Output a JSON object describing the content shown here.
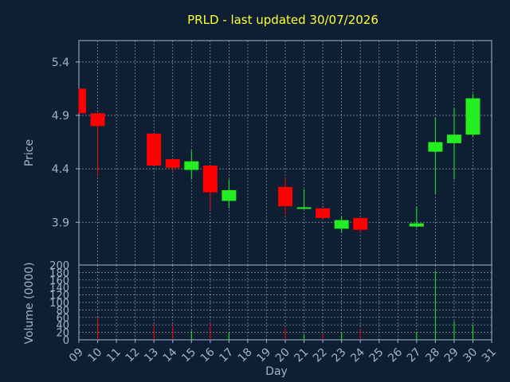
{
  "chart_data": {
    "type": "candlestick",
    "title": "PRLD - last updated 30/07/2026",
    "ylabel": "Price",
    "volume_label": "Volume (0000)",
    "xlabel": "Day",
    "x_ticks": [
      "09",
      "10",
      "11",
      "12",
      "13",
      "14",
      "15",
      "16",
      "17",
      "18",
      "19",
      "20",
      "21",
      "22",
      "23",
      "24",
      "25",
      "26",
      "27",
      "28",
      "29",
      "30",
      "31"
    ],
    "ylim": [
      3.5,
      5.6
    ],
    "y_ticks": [
      "3.9",
      "4.4",
      "4.9",
      "5.4"
    ],
    "vol_ylim": [
      0,
      200
    ],
    "vol_ticks": [
      "0",
      "20",
      "40",
      "60",
      "80",
      "100",
      "120",
      "140",
      "160",
      "180",
      "200"
    ],
    "candles": [
      {
        "day": "09",
        "open": 5.15,
        "high": 5.15,
        "low": 4.92,
        "close": 4.92
      },
      {
        "day": "10",
        "open": 4.92,
        "high": 4.92,
        "low": 4.33,
        "close": 4.8,
        "volume": 60
      },
      {
        "day": "13",
        "open": 4.73,
        "high": 4.73,
        "low": 4.43,
        "close": 4.43,
        "volume": 40
      },
      {
        "day": "14",
        "open": 4.49,
        "high": 4.49,
        "low": 4.37,
        "close": 4.41,
        "volume": 40
      },
      {
        "day": "15",
        "open": 4.39,
        "high": 4.57,
        "low": 4.3,
        "close": 4.47,
        "volume": 25
      },
      {
        "day": "16",
        "open": 4.43,
        "high": 4.43,
        "low": 4.02,
        "close": 4.18,
        "volume": 45
      },
      {
        "day": "17",
        "open": 4.1,
        "high": 4.3,
        "low": 4.03,
        "close": 4.2,
        "volume": 20
      },
      {
        "day": "20",
        "open": 4.23,
        "high": 4.32,
        "low": 3.97,
        "close": 4.05,
        "volume": 30
      },
      {
        "day": "21",
        "open": 4.03,
        "high": 4.21,
        "low": 4.02,
        "close": 4.04,
        "volume": 15
      },
      {
        "day": "22",
        "open": 4.03,
        "high": 4.03,
        "low": 3.92,
        "close": 3.94,
        "volume": 15
      },
      {
        "day": "23",
        "open": 3.84,
        "high": 3.96,
        "low": 3.8,
        "close": 3.92,
        "volume": 20
      },
      {
        "day": "24",
        "open": 3.94,
        "high": 3.94,
        "low": 3.8,
        "close": 3.83,
        "volume": 30
      },
      {
        "day": "27",
        "open": 3.86,
        "high": 4.05,
        "low": 3.85,
        "close": 3.89,
        "volume": 20
      },
      {
        "day": "28",
        "open": 4.56,
        "high": 4.88,
        "low": 4.17,
        "close": 4.65,
        "volume": 185
      },
      {
        "day": "29",
        "open": 4.64,
        "high": 4.97,
        "low": 4.3,
        "close": 4.72,
        "volume": 50
      },
      {
        "day": "30",
        "open": 4.72,
        "high": 5.1,
        "low": 4.7,
        "close": 5.06,
        "volume": 40
      }
    ],
    "colors": {
      "up": "#22ee22",
      "down": "#ff0000",
      "title": "#ffff33",
      "axis_text": "#a0b4cc",
      "background": "#0e1f33",
      "grid": "#ffffff"
    },
    "grid": true
  }
}
